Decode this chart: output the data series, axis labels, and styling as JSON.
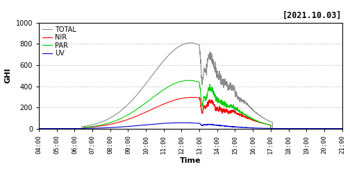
{
  "title": "[2021.10.03]",
  "xlabel": "Time",
  "ylabel": "GHI",
  "ylim": [
    0,
    1000
  ],
  "yticks": [
    0,
    200,
    400,
    600,
    800,
    1000
  ],
  "x_start_hour": 4,
  "x_end_hour": 21,
  "xtick_hours": [
    4,
    5,
    6,
    7,
    8,
    9,
    10,
    11,
    12,
    13,
    14,
    15,
    16,
    17,
    18,
    19,
    20,
    21
  ],
  "colors": {
    "TOTAL": "#888888",
    "NIR": "#ff0000",
    "PAR": "#00cc00",
    "UV": "#0000cc"
  },
  "background": "#ffffff",
  "grid_color": "#aaaaaa",
  "legend_labels": [
    "TOTAL",
    "NIR",
    "PAR",
    "UV"
  ],
  "noise_seed": 12
}
